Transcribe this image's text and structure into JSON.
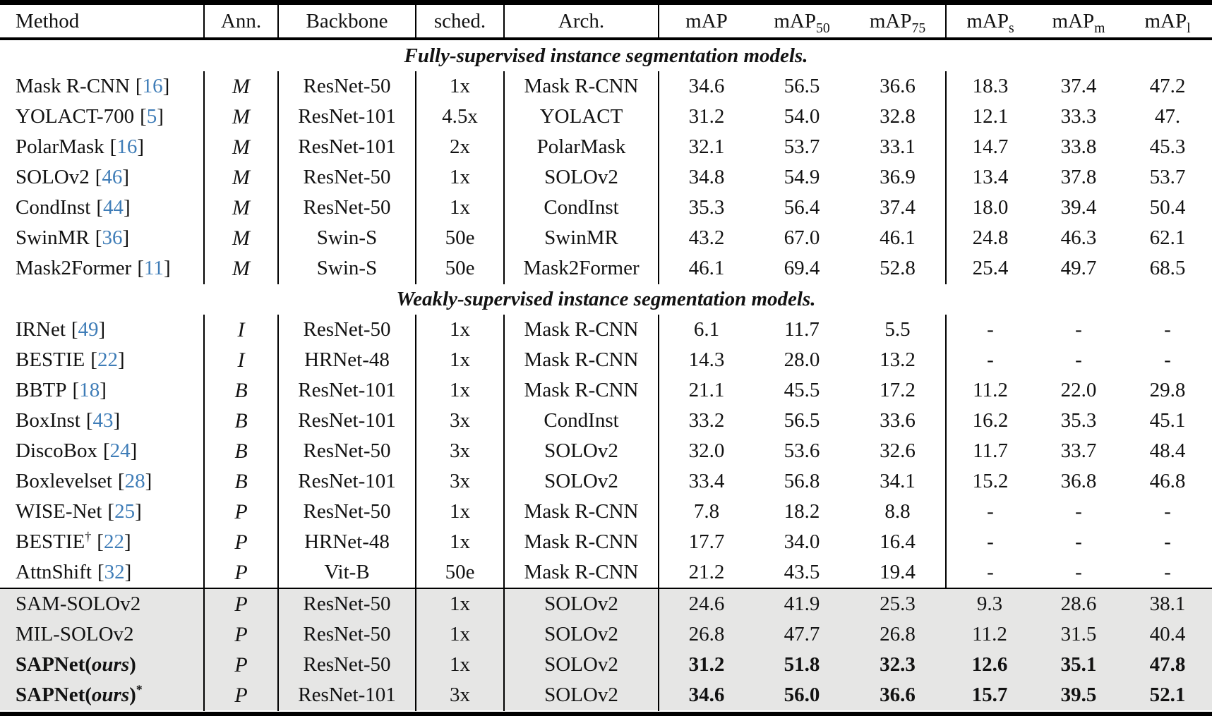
{
  "colors": {
    "citation_blue": "#3e7cb7",
    "highlight_bg": "#e6e6e5",
    "rule": "#000000"
  },
  "table": {
    "header": [
      {
        "label": "Method"
      },
      {
        "label": "Ann."
      },
      {
        "label": "Backbone"
      },
      {
        "label": "sched."
      },
      {
        "label": "Arch."
      },
      {
        "label": "mAP",
        "sub": ""
      },
      {
        "label": "mAP",
        "sub": "50"
      },
      {
        "label": "mAP",
        "sub": "75"
      },
      {
        "label": "mAP",
        "sub": "s"
      },
      {
        "label": "mAP",
        "sub": "m"
      },
      {
        "label": "mAP",
        "sub": "l"
      }
    ],
    "sections": [
      {
        "title": "Fully-supervised instance segmentation models.",
        "highlight": false,
        "rows": [
          {
            "method": {
              "name": "Mask R-CNN",
              "cite": "16"
            },
            "ann": "M",
            "backbone": "ResNet-50",
            "sched": "1x",
            "arch": "Mask R-CNN",
            "metrics": [
              "34.6",
              "56.5",
              "36.6",
              "18.3",
              "37.4",
              "47.2"
            ],
            "bold": false
          },
          {
            "method": {
              "name": "YOLACT-700",
              "cite": "5"
            },
            "ann": "M",
            "backbone": "ResNet-101",
            "sched": "4.5x",
            "arch": "YOLACT",
            "metrics": [
              "31.2",
              "54.0",
              "32.8",
              "12.1",
              "33.3",
              "47."
            ],
            "bold": false
          },
          {
            "method": {
              "name": "PolarMask",
              "cite": "16"
            },
            "ann": "M",
            "backbone": "ResNet-101",
            "sched": "2x",
            "arch": "PolarMask",
            "metrics": [
              "32.1",
              "53.7",
              "33.1",
              "14.7",
              "33.8",
              "45.3"
            ],
            "bold": false
          },
          {
            "method": {
              "name": "SOLOv2",
              "cite": "46"
            },
            "ann": "M",
            "backbone": "ResNet-50",
            "sched": "1x",
            "arch": "SOLOv2",
            "metrics": [
              "34.8",
              "54.9",
              "36.9",
              "13.4",
              "37.8",
              "53.7"
            ],
            "bold": false
          },
          {
            "method": {
              "name": "CondInst",
              "cite": "44"
            },
            "ann": "M",
            "backbone": "ResNet-50",
            "sched": "1x",
            "arch": "CondInst",
            "metrics": [
              "35.3",
              "56.4",
              "37.4",
              "18.0",
              "39.4",
              "50.4"
            ],
            "bold": false
          },
          {
            "method": {
              "name": "SwinMR",
              "cite": "36"
            },
            "ann": "M",
            "backbone": "Swin-S",
            "sched": "50e",
            "arch": "SwinMR",
            "metrics": [
              "43.2",
              "67.0",
              "46.1",
              "24.8",
              "46.3",
              "62.1"
            ],
            "bold": false
          },
          {
            "method": {
              "name": "Mask2Former",
              "cite": "11"
            },
            "ann": "M",
            "backbone": "Swin-S",
            "sched": "50e",
            "arch": "Mask2Former",
            "metrics": [
              "46.1",
              "69.4",
              "52.8",
              "25.4",
              "49.7",
              "68.5"
            ],
            "bold": false
          }
        ]
      },
      {
        "title": "Weakly-supervised instance segmentation models.",
        "highlight": false,
        "rows": [
          {
            "method": {
              "name": "IRNet",
              "cite": "49"
            },
            "ann": "I",
            "backbone": "ResNet-50",
            "sched": "1x",
            "arch": "Mask R-CNN",
            "metrics": [
              "6.1",
              "11.7",
              "5.5",
              "-",
              "-",
              "-"
            ],
            "bold": false
          },
          {
            "method": {
              "name": "BESTIE",
              "cite": "22"
            },
            "ann": "I",
            "backbone": "HRNet-48",
            "sched": "1x",
            "arch": "Mask R-CNN",
            "metrics": [
              "14.3",
              "28.0",
              "13.2",
              "-",
              "-",
              "-"
            ],
            "bold": false
          },
          {
            "method": {
              "name": "BBTP",
              "cite": "18"
            },
            "ann": "B",
            "backbone": "ResNet-101",
            "sched": "1x",
            "arch": "Mask R-CNN",
            "metrics": [
              "21.1",
              "45.5",
              "17.2",
              "11.2",
              "22.0",
              "29.8"
            ],
            "bold": false
          },
          {
            "method": {
              "name": "BoxInst",
              "cite": "43"
            },
            "ann": "B",
            "backbone": "ResNet-101",
            "sched": "3x",
            "arch": "CondInst",
            "metrics": [
              "33.2",
              "56.5",
              "33.6",
              "16.2",
              "35.3",
              "45.1"
            ],
            "bold": false
          },
          {
            "method": {
              "name": "DiscoBox",
              "cite": "24"
            },
            "ann": "B",
            "backbone": "ResNet-50",
            "sched": "3x",
            "arch": "SOLOv2",
            "metrics": [
              "32.0",
              "53.6",
              "32.6",
              "11.7",
              "33.7",
              "48.4"
            ],
            "bold": false
          },
          {
            "method": {
              "name": "Boxlevelset",
              "cite": "28"
            },
            "ann": "B",
            "backbone": "ResNet-101",
            "sched": "3x",
            "arch": "SOLOv2",
            "metrics": [
              "33.4",
              "56.8",
              "34.1",
              "15.2",
              "36.8",
              "46.8"
            ],
            "bold": false
          },
          {
            "method": {
              "name": "WISE-Net",
              "cite": "25"
            },
            "ann": "P",
            "backbone": "ResNet-50",
            "sched": "1x",
            "arch": "Mask R-CNN",
            "metrics": [
              "7.8",
              "18.2",
              "8.8",
              "-",
              "-",
              "-"
            ],
            "bold": false
          },
          {
            "method": {
              "name": "BESTIE",
              "sup": "†",
              "cite": "22"
            },
            "ann": "P",
            "backbone": "HRNet-48",
            "sched": "1x",
            "arch": "Mask R-CNN",
            "metrics": [
              "17.7",
              "34.0",
              "16.4",
              "-",
              "-",
              "-"
            ],
            "bold": false
          },
          {
            "method": {
              "name": "AttnShift",
              "cite": "32"
            },
            "ann": "P",
            "backbone": "Vit-B",
            "sched": "50e",
            "arch": "Mask R-CNN",
            "metrics": [
              "21.2",
              "43.5",
              "19.4",
              "-",
              "-",
              "-"
            ],
            "bold": false
          }
        ]
      },
      {
        "title": null,
        "highlight": true,
        "rows": [
          {
            "method": {
              "name": "SAM-SOLOv2"
            },
            "ann": "P",
            "backbone": "ResNet-50",
            "sched": "1x",
            "arch": "SOLOv2",
            "metrics": [
              "24.6",
              "41.9",
              "25.3",
              "9.3",
              "28.6",
              "38.1"
            ],
            "bold": false
          },
          {
            "method": {
              "name": "MIL-SOLOv2"
            },
            "ann": "P",
            "backbone": "ResNet-50",
            "sched": "1x",
            "arch": "SOLOv2",
            "metrics": [
              "26.8",
              "47.7",
              "26.8",
              "11.2",
              "31.5",
              "40.4"
            ],
            "bold": false
          },
          {
            "method": {
              "name": "SAPNet(",
              "em": "ours",
              "close": ")"
            },
            "ann": "P",
            "backbone": "ResNet-50",
            "sched": "1x",
            "arch": "SOLOv2",
            "metrics": [
              "31.2",
              "51.8",
              "32.3",
              "12.6",
              "35.1",
              "47.8"
            ],
            "bold": true
          },
          {
            "method": {
              "name": "SAPNet(",
              "em": "ours",
              "close": ")",
              "sup": "*"
            },
            "ann": "P",
            "backbone": "ResNet-101",
            "sched": "3x",
            "arch": "SOLOv2",
            "metrics": [
              "34.6",
              "56.0",
              "36.6",
              "15.7",
              "39.5",
              "52.1"
            ],
            "bold": true
          }
        ]
      }
    ]
  }
}
